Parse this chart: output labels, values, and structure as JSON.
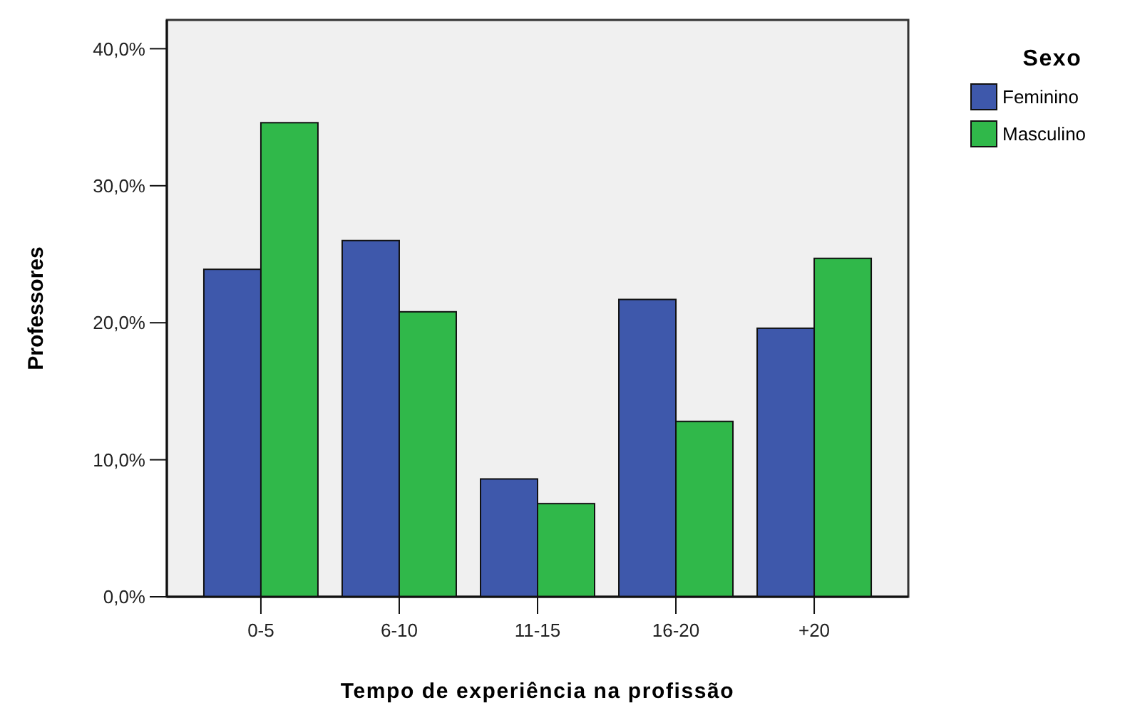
{
  "chart_data": {
    "type": "bar",
    "xlabel": "Tempo de experiência na profissão",
    "ylabel": "Professores",
    "legend_title": "Sexo",
    "legend": "top right",
    "grid": false,
    "categories": [
      "0-5",
      "6-10",
      "11-15",
      "16-20",
      "+20"
    ],
    "series": [
      {
        "name": "Feminino",
        "color": "#3e58ab",
        "values": [
          23.9,
          26.0,
          8.6,
          21.7,
          19.6
        ]
      },
      {
        "name": "Masculino",
        "color": "#30b84a",
        "values": [
          34.6,
          20.8,
          6.8,
          12.8,
          24.7
        ]
      }
    ],
    "ylim": [
      0,
      42.1
    ],
    "yticks": [
      {
        "value": 0,
        "label": "0,0%"
      },
      {
        "value": 10,
        "label": "10,0%"
      },
      {
        "value": 20,
        "label": "20,0%"
      },
      {
        "value": 30,
        "label": "30,0%"
      },
      {
        "value": 40,
        "label": "40,0%"
      }
    ]
  }
}
